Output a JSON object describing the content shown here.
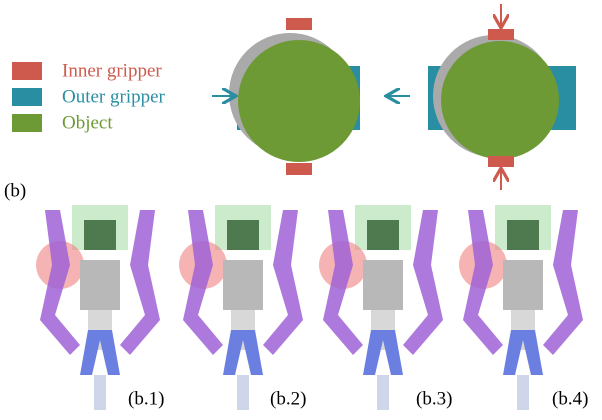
{
  "legend": {
    "items": [
      {
        "label": "Inner gripper",
        "color": "#cd5a4c"
      },
      {
        "label": "Outer gripper",
        "color": "#2a8ea3"
      },
      {
        "label": "Object",
        "color": "#6d9a34"
      }
    ]
  },
  "panel_label": "(b)",
  "subfigures": [
    {
      "label": "(b.1)"
    },
    {
      "label": "(b.2)"
    },
    {
      "label": "(b.3)"
    },
    {
      "label": "(b.4)"
    }
  ]
}
